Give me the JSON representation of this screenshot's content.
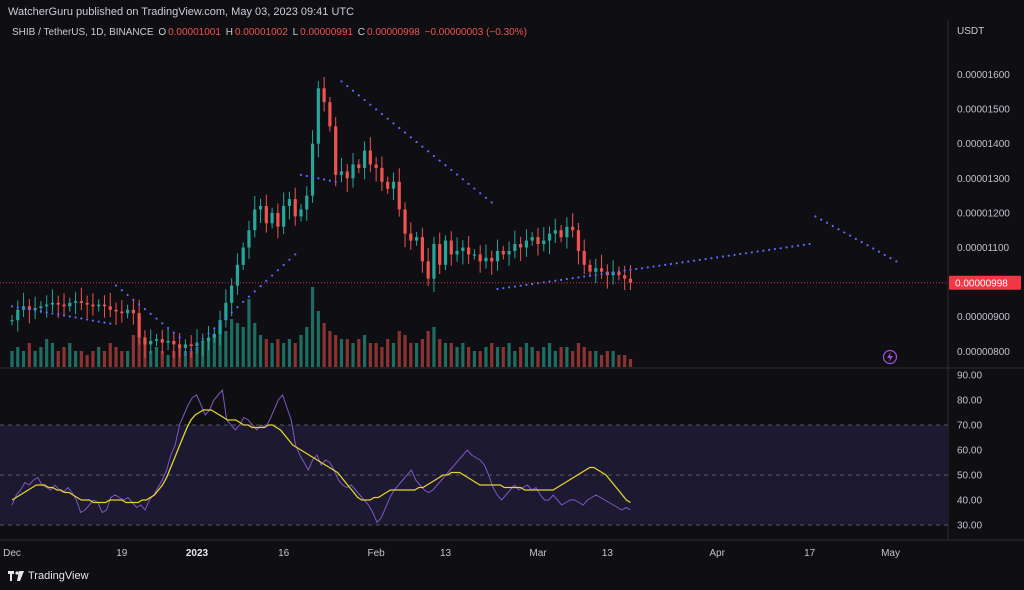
{
  "header": {
    "published": "WatcherGuru published on TradingView.com, May 03, 2023 09:41 UTC"
  },
  "symbol": {
    "name": "SHIB / TetherUS, 1D, BINANCE",
    "o_label": "O",
    "o_value": "0.00001001",
    "h_label": "H",
    "h_value": "0.00001002",
    "l_label": "L",
    "l_value": "0.00000991",
    "c_label": "C",
    "c_value": "0.00000998",
    "change": "−0.00000003 (−0.30%)"
  },
  "brand": {
    "name": "TradingView",
    "icon": "tradingview-logo-icon"
  },
  "colors": {
    "up": "#26a69a",
    "down": "#ef5350",
    "psar": "#5b6bff",
    "rsi": "#7e57c2",
    "rsi_ma": "#e3d42e",
    "price_tag": "#f23645"
  },
  "chart_data": [
    {
      "type": "candlestick",
      "title": "SHIB / TetherUS, 1D, BINANCE",
      "unit_label": "USDT",
      "ylim": [
        7.1e-06,
        1.66e-05
      ],
      "y_ticks": [
        "0.00001600",
        "0.00001500",
        "0.00001400",
        "0.00001300",
        "0.00001200",
        "0.00001100",
        "0.00000900",
        "0.00000800"
      ],
      "y_tick_values": [
        16.0,
        15.0,
        14.0,
        13.0,
        12.0,
        11.0,
        9.0,
        8.0
      ],
      "y_scale_note": "values in units of 1e-6 USDT",
      "last_price_label": "0.00000998",
      "last_price": 9.98,
      "x_ticks": [
        {
          "label": "Dec",
          "day": 0
        },
        {
          "label": "19",
          "day": 19
        },
        {
          "label": "2023",
          "day": 32,
          "bold": true
        },
        {
          "label": "16",
          "day": 47
        },
        {
          "label": "Feb",
          "day": 63
        },
        {
          "label": "13",
          "day": 75
        },
        {
          "label": "Mar",
          "day": 91
        },
        {
          "label": "13",
          "day": 103
        },
        {
          "label": "Apr",
          "day": 122
        },
        {
          "label": "17",
          "day": 138
        },
        {
          "label": "May",
          "day": 152
        }
      ],
      "closes": [
        8.9,
        9.2,
        9.3,
        9.2,
        9.25,
        9.3,
        9.35,
        9.4,
        9.35,
        9.3,
        9.4,
        9.45,
        9.4,
        9.35,
        9.3,
        9.35,
        9.3,
        9.2,
        9.15,
        9.1,
        9.2,
        9.1,
        8.4,
        8.2,
        8.3,
        8.35,
        8.25,
        8.3,
        8.2,
        8.1,
        8.2,
        8.15,
        8.25,
        8.3,
        8.4,
        8.5,
        8.9,
        9.4,
        9.9,
        10.5,
        11.0,
        11.5,
        12.1,
        12.2,
        11.7,
        12.0,
        11.6,
        12.2,
        12.4,
        11.9,
        12.1,
        12.5,
        14.0,
        15.6,
        15.2,
        14.5,
        13.1,
        13.2,
        13.0,
        13.4,
        13.3,
        13.8,
        13.4,
        13.3,
        12.9,
        12.7,
        12.9,
        12.1,
        11.4,
        11.2,
        11.3,
        10.6,
        10.1,
        11.1,
        10.5,
        11.2,
        10.8,
        10.9,
        11.0,
        10.8,
        10.8,
        10.6,
        10.7,
        10.6,
        10.9,
        10.8,
        10.9,
        11.1,
        11.0,
        11.2,
        11.3,
        11.1,
        11.2,
        11.4,
        11.5,
        11.3,
        11.6,
        11.5,
        10.9,
        10.5,
        10.3,
        10.4,
        10.3,
        10.2,
        10.3,
        10.2,
        10.1,
        9.98
      ],
      "volume_relative": [
        0.2,
        0.25,
        0.2,
        0.3,
        0.2,
        0.25,
        0.35,
        0.3,
        0.2,
        0.25,
        0.3,
        0.2,
        0.2,
        0.15,
        0.2,
        0.25,
        0.2,
        0.3,
        0.25,
        0.2,
        0.2,
        0.4,
        0.45,
        0.3,
        0.2,
        0.25,
        0.2,
        0.15,
        0.2,
        0.25,
        0.2,
        0.2,
        0.25,
        0.3,
        0.35,
        0.4,
        0.5,
        0.45,
        0.6,
        0.55,
        0.5,
        0.85,
        0.55,
        0.4,
        0.35,
        0.3,
        0.35,
        0.3,
        0.35,
        0.3,
        0.4,
        0.5,
        1.0,
        0.7,
        0.55,
        0.45,
        0.4,
        0.35,
        0.35,
        0.3,
        0.35,
        0.4,
        0.3,
        0.3,
        0.25,
        0.35,
        0.3,
        0.45,
        0.4,
        0.3,
        0.3,
        0.35,
        0.45,
        0.5,
        0.35,
        0.3,
        0.3,
        0.25,
        0.3,
        0.25,
        0.2,
        0.2,
        0.25,
        0.3,
        0.25,
        0.25,
        0.3,
        0.2,
        0.25,
        0.3,
        0.25,
        0.2,
        0.25,
        0.3,
        0.2,
        0.25,
        0.25,
        0.2,
        0.3,
        0.25,
        0.2,
        0.2,
        0.15,
        0.2,
        0.2,
        0.15,
        0.15,
        0.1
      ],
      "psar": [
        {
          "from": 0,
          "to": 18,
          "start": 9.3,
          "end": 8.8
        },
        {
          "from": 18,
          "to": 30,
          "start": 9.9,
          "end": 8.4
        },
        {
          "from": 30,
          "to": 50,
          "start": 7.9,
          "end": 10.8
        },
        {
          "from": 50,
          "to": 57,
          "start": 13.1,
          "end": 12.9
        },
        {
          "from": 57,
          "to": 84,
          "start": 15.8,
          "end": 12.3
        },
        {
          "from": 84,
          "to": 139,
          "start": 9.8,
          "end": 11.1
        },
        {
          "from": 139,
          "to": 154,
          "start": 11.9,
          "end": 10.6
        }
      ]
    },
    {
      "type": "line",
      "title": "RSI",
      "ylim": [
        28,
        92
      ],
      "y_ticks": [
        "90.00",
        "80.00",
        "70.00",
        "60.00",
        "50.00",
        "40.00",
        "30.00"
      ],
      "y_tick_values": [
        90,
        80,
        70,
        60,
        50,
        40,
        30
      ],
      "band": [
        30,
        70
      ],
      "series": [
        {
          "values": [
            38,
            42,
            44,
            47,
            46,
            48,
            49,
            46,
            45,
            44,
            46,
            44,
            43,
            45,
            43,
            40,
            35,
            36,
            38,
            40,
            39,
            35,
            36,
            41,
            42,
            41,
            40,
            41,
            39,
            37,
            38,
            36,
            40,
            42,
            45,
            48,
            52,
            58,
            62,
            70,
            74,
            78,
            81,
            82,
            78,
            74,
            76,
            80,
            82,
            84,
            72,
            70,
            68,
            70,
            73,
            72,
            70,
            68,
            70,
            69,
            72,
            76,
            80,
            82,
            77,
            72,
            62,
            58,
            55,
            52,
            56,
            58,
            54,
            56,
            55,
            52,
            48,
            46,
            45,
            46,
            44,
            42,
            40,
            38,
            35,
            31,
            33,
            37,
            41,
            44,
            46,
            48,
            50,
            52,
            48,
            46,
            44,
            43,
            44,
            46,
            48,
            50,
            52,
            54,
            56,
            58,
            60,
            58,
            57,
            56,
            54,
            50,
            45,
            42,
            40,
            42,
            44,
            46,
            44,
            45,
            46,
            44,
            45,
            42,
            40,
            40,
            42,
            40,
            38,
            39,
            40,
            40,
            39,
            38,
            40,
            41,
            42,
            41,
            40,
            39,
            38,
            37,
            36,
            37,
            36
          ]
        },
        {
          "values": [
            40,
            41,
            42,
            43,
            44,
            45,
            46,
            46,
            46,
            45,
            45,
            44,
            44,
            43,
            43,
            42,
            41,
            40,
            40,
            40,
            39,
            39,
            39,
            39,
            40,
            40,
            40,
            40,
            39,
            39,
            39,
            39,
            40,
            40,
            41,
            42,
            44,
            46,
            49,
            53,
            57,
            61,
            65,
            69,
            72,
            74,
            75,
            76,
            76,
            76,
            75,
            74,
            73,
            72,
            72,
            72,
            71,
            70,
            70,
            69,
            69,
            69,
            69,
            70,
            70,
            69,
            68,
            66,
            64,
            62,
            61,
            60,
            59,
            58,
            57,
            56,
            55,
            54,
            53,
            52,
            51,
            49,
            47,
            45,
            43,
            41,
            40,
            40,
            40,
            41,
            41,
            42,
            43,
            44,
            44,
            44,
            44,
            44,
            44,
            44,
            45,
            45,
            46,
            47,
            48,
            49,
            50,
            50,
            51,
            51,
            51,
            50,
            49,
            48,
            47,
            46,
            46,
            46,
            46,
            46,
            46,
            45,
            45,
            45,
            45,
            45,
            44,
            44,
            44,
            44,
            44,
            44,
            44,
            44,
            45,
            46,
            47,
            48,
            49,
            50,
            51,
            52,
            53,
            53,
            52,
            51,
            50,
            48,
            46,
            44,
            42,
            40,
            39
          ]
        }
      ]
    }
  ]
}
